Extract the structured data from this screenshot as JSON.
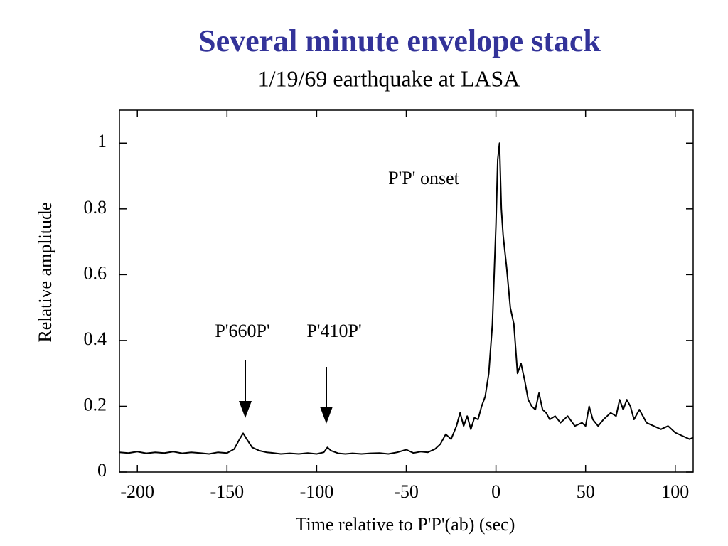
{
  "chart_data": {
    "type": "line",
    "title": "Several minute envelope stack",
    "subtitle": "1/19/69 earthquake at LASA",
    "x_label": "Time relative to P'P'(ab) (sec)",
    "y_label": "Relative amplitude",
    "annotations": [
      "P'P' onset",
      "P'660P'",
      "P'410P'"
    ],
    "xlim": [
      -210,
      110
    ],
    "ylim": [
      0,
      1.1
    ],
    "xticks": [
      -200,
      -150,
      -100,
      -50,
      0,
      50,
      100
    ],
    "yticks": [
      0,
      0.2,
      0.4,
      0.6,
      0.8,
      1
    ],
    "color": "#000000",
    "x": [
      -210,
      -205,
      -200,
      -195,
      -190,
      -185,
      -180,
      -175,
      -170,
      -165,
      -160,
      -155,
      -150,
      -146,
      -143,
      -141,
      -139,
      -136,
      -132,
      -128,
      -124,
      -120,
      -115,
      -110,
      -105,
      -100,
      -96,
      -94,
      -92,
      -88,
      -84,
      -80,
      -75,
      -70,
      -65,
      -60,
      -55,
      -50,
      -46,
      -42,
      -38,
      -34,
      -31,
      -28,
      -25,
      -22,
      -20,
      -18,
      -16,
      -14,
      -12,
      -10,
      -8,
      -6,
      -4,
      -2,
      0,
      1,
      2,
      3,
      4,
      6,
      8,
      10,
      12,
      14,
      16,
      18,
      20,
      22,
      24,
      26,
      28,
      30,
      33,
      36,
      40,
      44,
      48,
      50,
      52,
      54,
      57,
      60,
      64,
      67,
      69,
      71,
      73,
      75,
      77,
      80,
      84,
      88,
      92,
      96,
      100,
      104,
      108,
      110
    ],
    "values": [
      0.06,
      0.058,
      0.062,
      0.057,
      0.06,
      0.058,
      0.062,
      0.057,
      0.06,
      0.058,
      0.055,
      0.06,
      0.058,
      0.07,
      0.1,
      0.118,
      0.1,
      0.075,
      0.065,
      0.06,
      0.058,
      0.055,
      0.057,
      0.055,
      0.058,
      0.055,
      0.06,
      0.075,
      0.065,
      0.057,
      0.055,
      0.057,
      0.055,
      0.057,
      0.058,
      0.055,
      0.06,
      0.068,
      0.058,
      0.062,
      0.06,
      0.07,
      0.085,
      0.115,
      0.1,
      0.14,
      0.18,
      0.14,
      0.17,
      0.13,
      0.165,
      0.16,
      0.2,
      0.23,
      0.3,
      0.45,
      0.75,
      0.95,
      1.0,
      0.8,
      0.72,
      0.62,
      0.5,
      0.45,
      0.3,
      0.33,
      0.28,
      0.22,
      0.2,
      0.19,
      0.24,
      0.19,
      0.18,
      0.16,
      0.17,
      0.15,
      0.17,
      0.14,
      0.15,
      0.14,
      0.2,
      0.16,
      0.14,
      0.16,
      0.18,
      0.17,
      0.22,
      0.19,
      0.22,
      0.2,
      0.16,
      0.19,
      0.15,
      0.14,
      0.13,
      0.14,
      0.12,
      0.11,
      0.1,
      0.105
    ]
  }
}
